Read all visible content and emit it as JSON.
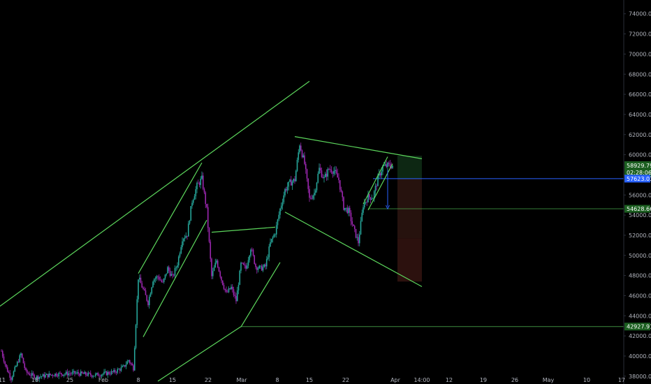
{
  "chart_data": {
    "type": "candlestick",
    "y_axis": {
      "ticks": [
        "74000.00",
        "72000.00",
        "70000.00",
        "68000.00",
        "66000.00",
        "64000.00",
        "62000.00",
        "60000.00",
        "58000.00",
        "56000.00",
        "54000.00",
        "52000.00",
        "50000.00",
        "48000.00",
        "46000.00",
        "44000.00",
        "42000.00",
        "40000.00",
        "38000.00"
      ],
      "range": [
        37500,
        75300
      ]
    },
    "x_axis": {
      "ticks": [
        "11",
        "18",
        "25",
        "Feb",
        "8",
        "15",
        "22",
        "Mar",
        "8",
        "15",
        "22",
        "Apr",
        "14:00",
        "12",
        "19",
        "26",
        "May",
        "10",
        "17"
      ]
    },
    "price_labels": {
      "current_price": "58929.79",
      "countdown": "02:28:06",
      "entry": "57623.03",
      "target": "54628.66",
      "support": "42927.91"
    },
    "price_levels": {
      "entry": 57623.03,
      "target": 54628.66,
      "support": 42927.91,
      "current": 58929.79
    },
    "trendlines": [
      {
        "name": "major-rising-line",
        "from": [
          "2021-01-08",
          44000
        ],
        "to": [
          "2021-03-15",
          67300
        ]
      },
      {
        "name": "rising-wedge-upper",
        "from": [
          "2021-02-08",
          48200
        ],
        "to": [
          "2021-02-21",
          59200
        ]
      },
      {
        "name": "rising-wedge-lower",
        "from": [
          "2021-02-09",
          41900
        ],
        "to": [
          "2021-02-22",
          53500
        ]
      },
      {
        "name": "rising-support-line",
        "from": [
          "2021-02-12",
          37500
        ],
        "to": [
          "2021-03-01",
          42927.91
        ]
      },
      {
        "name": "consolidation-upper",
        "from": [
          "2021-02-23",
          52300
        ],
        "to": [
          "2021-03-08",
          52800
        ]
      },
      {
        "name": "consolidation-lower",
        "from": [
          "2021-03-01",
          42900
        ],
        "to": [
          "2021-03-09",
          49300
        ]
      },
      {
        "name": "broadening-upper",
        "from": [
          "2021-03-12",
          61800
        ],
        "to": [
          "2021-04-07",
          59600
        ]
      },
      {
        "name": "broadening-lower",
        "from": [
          "2021-03-10",
          54300
        ],
        "to": [
          "2021-04-07",
          46900
        ]
      },
      {
        "name": "small-wedge-upper",
        "from": [
          "2021-03-26",
          55100
        ],
        "to": [
          "2021-03-31",
          59800
        ]
      },
      {
        "name": "small-wedge-lower",
        "from": [
          "2021-03-27",
          54500
        ],
        "to": [
          "2021-04-01",
          59100
        ]
      }
    ],
    "position": {
      "start": "2021-04-02",
      "end": "2021-04-07",
      "profit_zone": [
        57623.03,
        59900
      ],
      "loss_zone_a": [
        51700,
        57623.03
      ],
      "loss_zone_b": [
        47400,
        51700
      ]
    },
    "price_series": [
      {
        "date": "2021-01-11",
        "price": 40500
      },
      {
        "date": "2021-01-12",
        "price": 38800
      },
      {
        "date": "2021-01-13",
        "price": 37800
      },
      {
        "date": "2021-01-14",
        "price": 39000
      },
      {
        "date": "2021-01-15",
        "price": 40200
      },
      {
        "date": "2021-01-16",
        "price": 38400
      },
      {
        "date": "2021-01-18",
        "price": 37900
      },
      {
        "date": "2021-01-22",
        "price": 38200
      },
      {
        "date": "2021-01-26",
        "price": 38300
      },
      {
        "date": "2021-01-30",
        "price": 38100
      },
      {
        "date": "2021-02-03",
        "price": 38400
      },
      {
        "date": "2021-02-05",
        "price": 38900
      },
      {
        "date": "2021-02-06",
        "price": 39600
      },
      {
        "date": "2021-02-07",
        "price": 38800
      },
      {
        "date": "2021-02-08",
        "price": 47800
      },
      {
        "date": "2021-02-09",
        "price": 46600
      },
      {
        "date": "2021-02-10",
        "price": 45300
      },
      {
        "date": "2021-02-11",
        "price": 47600
      },
      {
        "date": "2021-02-12",
        "price": 47900
      },
      {
        "date": "2021-02-13",
        "price": 47200
      },
      {
        "date": "2021-02-14",
        "price": 48700
      },
      {
        "date": "2021-02-15",
        "price": 47800
      },
      {
        "date": "2021-02-16",
        "price": 49200
      },
      {
        "date": "2021-02-17",
        "price": 51700
      },
      {
        "date": "2021-02-18",
        "price": 52100
      },
      {
        "date": "2021-02-19",
        "price": 55400
      },
      {
        "date": "2021-02-20",
        "price": 56900
      },
      {
        "date": "2021-02-21",
        "price": 57600
      },
      {
        "date": "2021-02-22",
        "price": 54500
      },
      {
        "date": "2021-02-23",
        "price": 47900
      },
      {
        "date": "2021-02-24",
        "price": 49500
      },
      {
        "date": "2021-02-25",
        "price": 47600
      },
      {
        "date": "2021-02-26",
        "price": 46200
      },
      {
        "date": "2021-02-27",
        "price": 46800
      },
      {
        "date": "2021-02-28",
        "price": 45500
      },
      {
        "date": "2021-03-01",
        "price": 49100
      },
      {
        "date": "2021-03-02",
        "price": 48700
      },
      {
        "date": "2021-03-03",
        "price": 50800
      },
      {
        "date": "2021-03-04",
        "price": 48900
      },
      {
        "date": "2021-03-05",
        "price": 48700
      },
      {
        "date": "2021-03-06",
        "price": 48900
      },
      {
        "date": "2021-03-07",
        "price": 51200
      },
      {
        "date": "2021-03-08",
        "price": 52300
      },
      {
        "date": "2021-03-09",
        "price": 54600
      },
      {
        "date": "2021-03-10",
        "price": 56500
      },
      {
        "date": "2021-03-11",
        "price": 57200
      },
      {
        "date": "2021-03-12",
        "price": 57500
      },
      {
        "date": "2021-03-13",
        "price": 61100
      },
      {
        "date": "2021-03-14",
        "price": 59100
      },
      {
        "date": "2021-03-15",
        "price": 55600
      },
      {
        "date": "2021-03-16",
        "price": 56200
      },
      {
        "date": "2021-03-17",
        "price": 58600
      },
      {
        "date": "2021-03-18",
        "price": 57600
      },
      {
        "date": "2021-03-19",
        "price": 58600
      },
      {
        "date": "2021-03-20",
        "price": 58400
      },
      {
        "date": "2021-03-21",
        "price": 57500
      },
      {
        "date": "2021-03-22",
        "price": 54800
      },
      {
        "date": "2021-03-23",
        "price": 54400
      },
      {
        "date": "2021-03-24",
        "price": 52700
      },
      {
        "date": "2021-03-25",
        "price": 51300
      },
      {
        "date": "2021-03-26",
        "price": 55000
      },
      {
        "date": "2021-03-27",
        "price": 55800
      },
      {
        "date": "2021-03-28",
        "price": 55800
      },
      {
        "date": "2021-03-29",
        "price": 57600
      },
      {
        "date": "2021-03-30",
        "price": 58800
      },
      {
        "date": "2021-03-31",
        "price": 58900
      },
      {
        "date": "2021-04-01",
        "price": 58929.79
      }
    ]
  }
}
